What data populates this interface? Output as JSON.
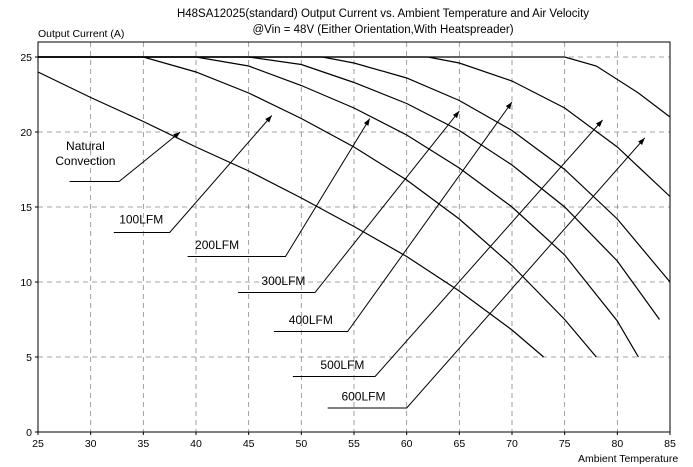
{
  "chart_data": {
    "type": "line",
    "title_line1": "H48SA12025(standard)  Output Current vs. Ambient Temperature and Air Velocity",
    "title_line2": "@Vin = 48V (Either Orientation,With Heatspreader)",
    "ylabel": "Output Current (A)",
    "xlabel": "Ambient Temperature",
    "xlim": [
      25,
      85
    ],
    "ylim": [
      0,
      26
    ],
    "x_ticks": [
      "25",
      "30",
      "35",
      "40",
      "45",
      "50",
      "55",
      "60",
      "65",
      "70",
      "75",
      "80",
      "85"
    ],
    "y_ticks": [
      "0",
      "5",
      "10",
      "15",
      "20",
      "25"
    ],
    "grid": "dashed",
    "series": [
      {
        "name": "Natural Convection",
        "points": [
          [
            25,
            24
          ],
          [
            30,
            22.3
          ],
          [
            35,
            20.7
          ],
          [
            40,
            19
          ],
          [
            45,
            17.4
          ],
          [
            50,
            15.6
          ],
          [
            55,
            13.7
          ],
          [
            60,
            11.7
          ],
          [
            65,
            9.4
          ],
          [
            70,
            6.8
          ],
          [
            73,
            5
          ]
        ],
        "label_lines": [
          "Natural",
          "Convection"
        ],
        "leader": [
          [
            38.5,
            20
          ],
          [
            32.7,
            16.7
          ],
          [
            28,
            16.7
          ]
        ],
        "label_pos": [
          29.5,
          18.8
        ]
      },
      {
        "name": "100LFM",
        "points": [
          [
            25,
            25
          ],
          [
            35,
            25
          ],
          [
            40,
            24
          ],
          [
            45,
            22.6
          ],
          [
            50,
            20.9
          ],
          [
            55,
            19
          ],
          [
            60,
            16.8
          ],
          [
            65,
            14.2
          ],
          [
            70,
            11.1
          ],
          [
            75,
            7.5
          ],
          [
            78,
            5
          ]
        ],
        "leader": [
          [
            47.2,
            21.1
          ],
          [
            37.5,
            13.3
          ],
          [
            32.2,
            13.3
          ]
        ],
        "label_pos": [
          34.8,
          13.9
        ]
      },
      {
        "name": "200LFM",
        "points": [
          [
            25,
            25
          ],
          [
            40,
            25
          ],
          [
            45,
            24.4
          ],
          [
            50,
            23.1
          ],
          [
            55,
            21.6
          ],
          [
            60,
            19.8
          ],
          [
            65,
            17.6
          ],
          [
            70,
            15
          ],
          [
            75,
            11.8
          ],
          [
            80,
            7.4
          ],
          [
            82,
            5
          ]
        ],
        "leader": [
          [
            56.5,
            20.9
          ],
          [
            48.5,
            11.7
          ],
          [
            39.2,
            11.7
          ]
        ],
        "label_pos": [
          42.0,
          12.2
        ]
      },
      {
        "name": "300LFM",
        "points": [
          [
            25,
            25
          ],
          [
            45,
            25
          ],
          [
            50,
            24.5
          ],
          [
            55,
            23.3
          ],
          [
            60,
            21.9
          ],
          [
            65,
            20.1
          ],
          [
            70,
            17.8
          ],
          [
            75,
            15
          ],
          [
            80,
            11.4
          ],
          [
            84,
            7.5
          ]
        ],
        "leader": [
          [
            65,
            21.4
          ],
          [
            51.3,
            9.3
          ],
          [
            44,
            9.3
          ]
        ],
        "label_pos": [
          48.3,
          9.8
        ]
      },
      {
        "name": "400LFM",
        "points": [
          [
            25,
            25
          ],
          [
            52,
            25
          ],
          [
            55,
            24.6
          ],
          [
            60,
            23.6
          ],
          [
            65,
            22.1
          ],
          [
            70,
            20.1
          ],
          [
            75,
            17.5
          ],
          [
            80,
            14.2
          ],
          [
            85,
            10
          ]
        ],
        "leader": [
          [
            70,
            22
          ],
          [
            54.4,
            6.7
          ],
          [
            47.4,
            6.7
          ]
        ],
        "label_pos": [
          50.9,
          7.2
        ]
      },
      {
        "name": "500LFM",
        "points": [
          [
            25,
            25
          ],
          [
            62,
            25
          ],
          [
            65,
            24.6
          ],
          [
            70,
            23.4
          ],
          [
            75,
            21.6
          ],
          [
            80,
            19
          ],
          [
            85,
            15.7
          ]
        ],
        "leader": [
          [
            78.6,
            20.8
          ],
          [
            57,
            3.7
          ],
          [
            49.2,
            3.7
          ]
        ],
        "label_pos": [
          53.9,
          4.2
        ]
      },
      {
        "name": "600LFM",
        "points": [
          [
            25,
            25
          ],
          [
            75,
            25
          ],
          [
            78,
            24.4
          ],
          [
            82,
            22.6
          ],
          [
            85,
            21
          ]
        ],
        "leader": [
          [
            82.6,
            19.6
          ],
          [
            60,
            1.6
          ],
          [
            52.5,
            1.6
          ]
        ],
        "label_pos": [
          55.9,
          2.1
        ]
      }
    ]
  }
}
